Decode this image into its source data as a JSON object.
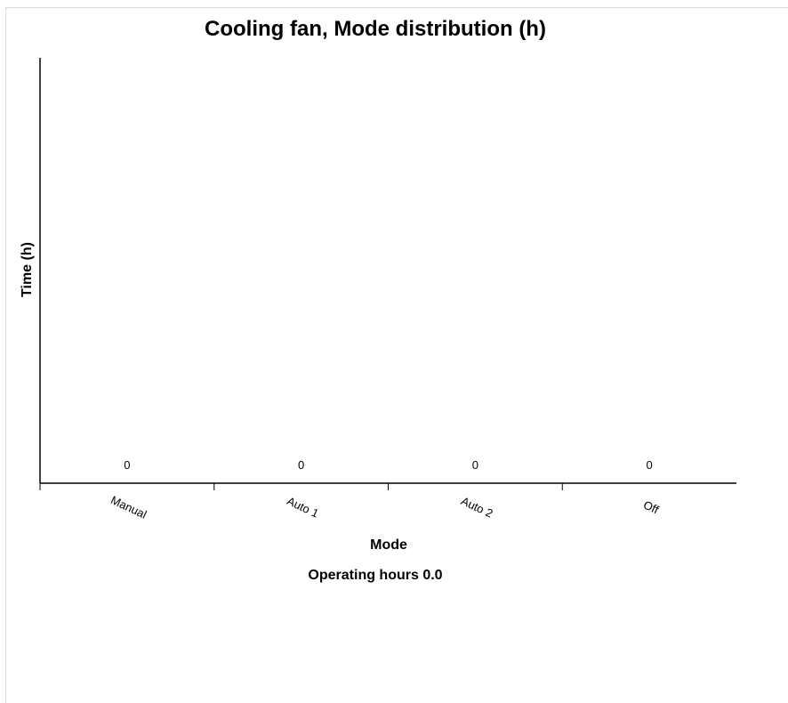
{
  "chart_data": {
    "type": "bar",
    "title": "Cooling fan, Mode distribution (h)",
    "xlabel": "Mode",
    "ylabel": "Time (h)",
    "categories": [
      "Manual",
      "Auto 1",
      "Auto 2",
      "Off"
    ],
    "values": [
      0,
      0,
      0,
      0
    ],
    "data_labels": [
      "0",
      "0",
      "0",
      "0"
    ],
    "ylim": [
      0,
      1
    ],
    "grid": false,
    "legend": "none",
    "footer": "Operating hours 0.0"
  }
}
